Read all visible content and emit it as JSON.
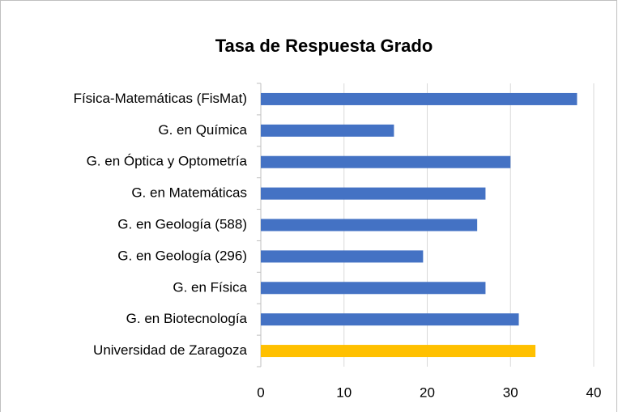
{
  "chart_data": {
    "type": "barh",
    "title": "Tasa de Respuesta Grado",
    "categories": [
      "Física-Matemáticas (FisMat)",
      "G. en Química",
      "G. en Óptica y Optometría",
      "G. en Matemáticas",
      "G. en Geología (588)",
      "G. en Geología (296)",
      "G. en Física",
      "G. en Biotecnología",
      "Universidad de Zaragoza"
    ],
    "values": [
      38,
      16,
      30,
      27,
      26,
      19.5,
      27,
      31,
      33
    ],
    "colors": [
      "#4472c4",
      "#4472c4",
      "#4472c4",
      "#4472c4",
      "#4472c4",
      "#4472c4",
      "#4472c4",
      "#4472c4",
      "#ffc000"
    ],
    "xlim": [
      0,
      40
    ],
    "xticks": [
      0,
      10,
      20,
      30,
      40
    ],
    "grid": true
  }
}
